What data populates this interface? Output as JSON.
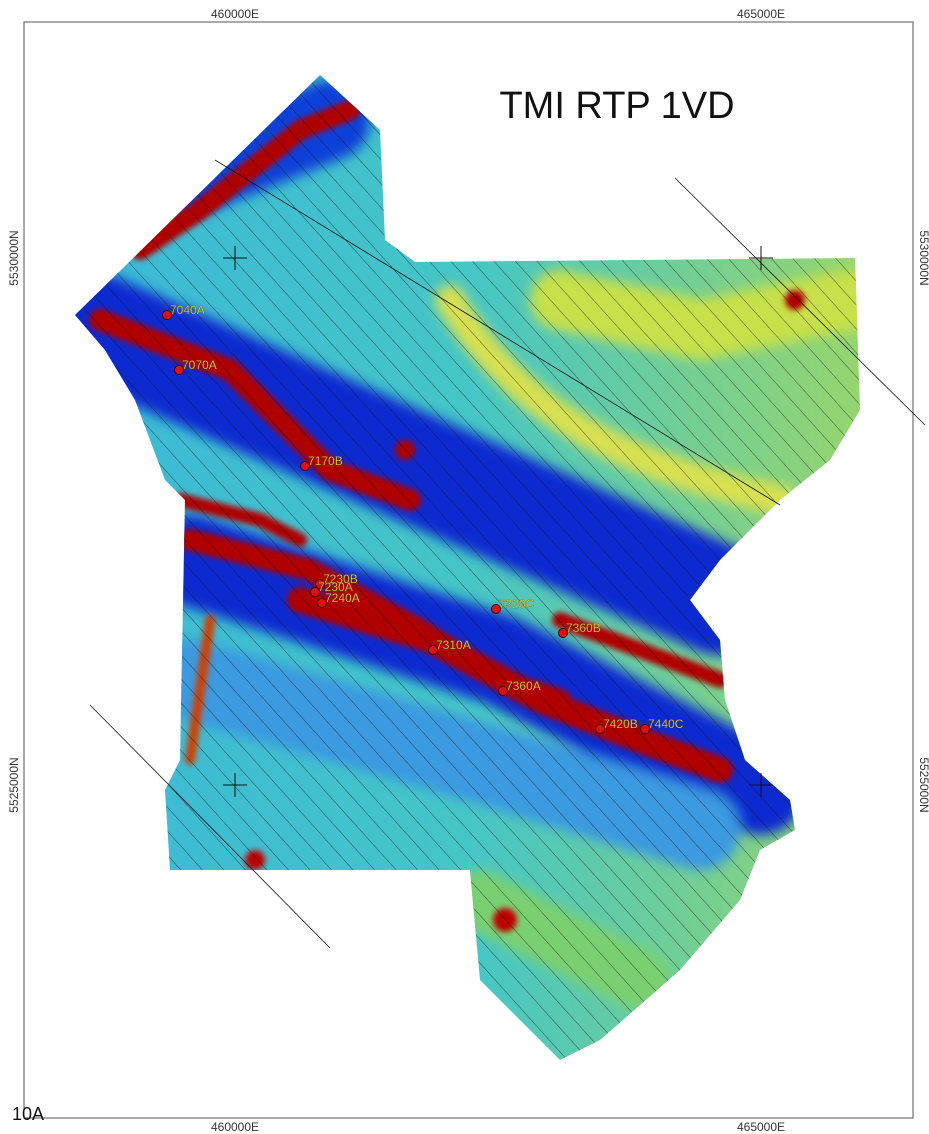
{
  "title": "TMI RTP 1VD",
  "figure_label": "10A",
  "grid_labels": {
    "eastings_top": [
      "460000E",
      "465000E"
    ],
    "eastings_bottom": [
      "460000E",
      "465000E"
    ],
    "northings_left": [
      "5530000N",
      "5525000N"
    ],
    "northings_right": [
      "5530000N",
      "5525000N"
    ]
  },
  "targets": [
    "7040A",
    "7070A",
    "7170B",
    "7230B",
    "7230A",
    "7240A",
    "7320C",
    "7310A",
    "7360B",
    "7360A",
    "7420B",
    "7440C"
  ]
}
